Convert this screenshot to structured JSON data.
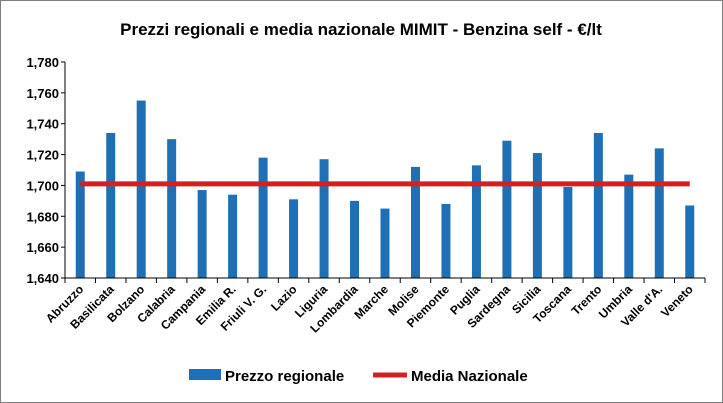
{
  "chart_data": {
    "type": "bar",
    "title": "Prezzi regionali e media nazionale MIMIT - Benzina self - €/lt",
    "categories": [
      "Abruzzo",
      "Basilicata",
      "Bolzano",
      "Calabria",
      "Campania",
      "Emilia R.",
      "Friuli V. G.",
      "Lazio",
      "Liguria",
      "Lombardia",
      "Marche",
      "Molise",
      "Piemonte",
      "Puglia",
      "Sardegna",
      "Sicilia",
      "Toscana",
      "Trento",
      "Umbria",
      "Valle d'A.",
      "Veneto"
    ],
    "series": [
      {
        "name": "Prezzo regionale",
        "type": "bar",
        "color": "#1f6fb5",
        "values": [
          1.709,
          1.734,
          1.755,
          1.73,
          1.697,
          1.694,
          1.718,
          1.691,
          1.717,
          1.69,
          1.685,
          1.712,
          1.688,
          1.713,
          1.729,
          1.721,
          1.699,
          1.734,
          1.707,
          1.724,
          1.687
        ]
      },
      {
        "name": "Media Nazionale",
        "type": "line",
        "color": "#d42020",
        "values": [
          1.701,
          1.701,
          1.701,
          1.701,
          1.701,
          1.701,
          1.701,
          1.701,
          1.701,
          1.701,
          1.701,
          1.701,
          1.701,
          1.701,
          1.701,
          1.701,
          1.701,
          1.701,
          1.701,
          1.701,
          1.701
        ]
      }
    ],
    "ylim": [
      1.64,
      1.78
    ],
    "yticks": [
      "1,780",
      "1,760",
      "1,740",
      "1,720",
      "1,700",
      "1,680",
      "1,660",
      "1,640"
    ],
    "grid": false,
    "legend_position": "bottom"
  }
}
